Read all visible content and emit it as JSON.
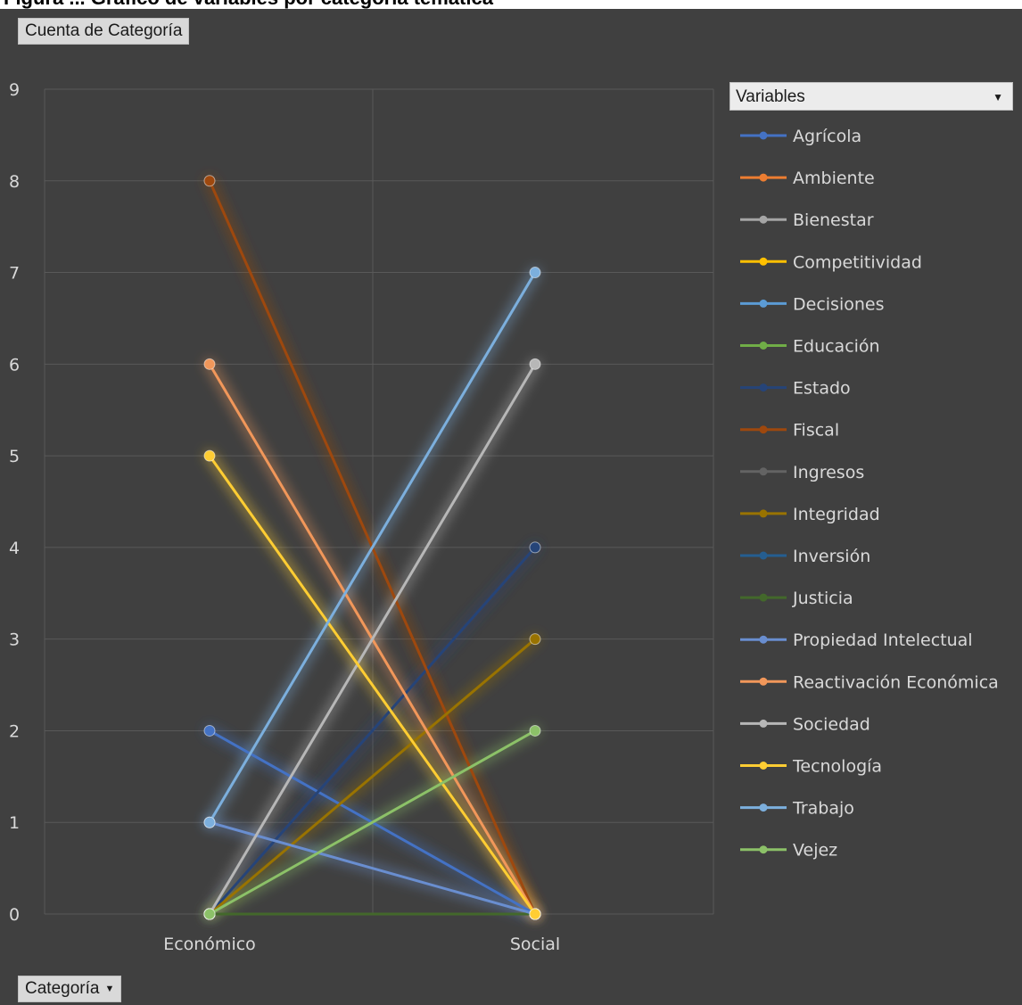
{
  "caption": "Figura ... Gráfico de variables por categoría temática",
  "buttons": {
    "value_field": "Cuenta de Categoría",
    "axis_field": "Categoría",
    "legend_field": "Variables"
  },
  "chart_data": {
    "type": "line",
    "categories": [
      "Económico",
      "Social"
    ],
    "ylim": [
      0,
      9
    ],
    "yticks": [
      0,
      1,
      2,
      3,
      4,
      5,
      6,
      7,
      8,
      9
    ],
    "grid": true,
    "legend_position": "right",
    "series": [
      {
        "name": "Agrícola",
        "values": [
          2,
          0
        ],
        "color": "#4472c4"
      },
      {
        "name": "Ambiente",
        "values": [
          0,
          0
        ],
        "color": "#ed7d31"
      },
      {
        "name": "Bienestar",
        "values": [
          0,
          0
        ],
        "color": "#a5a5a5"
      },
      {
        "name": "Competitividad",
        "values": [
          0,
          0
        ],
        "color": "#ffc000"
      },
      {
        "name": "Decisiones",
        "values": [
          0,
          0
        ],
        "color": "#5b9bd5"
      },
      {
        "name": "Educación",
        "values": [
          0,
          0
        ],
        "color": "#70ad47"
      },
      {
        "name": "Estado",
        "values": [
          0,
          4
        ],
        "color": "#264478"
      },
      {
        "name": "Fiscal",
        "values": [
          8,
          0
        ],
        "color": "#9e480e"
      },
      {
        "name": "Ingresos",
        "values": [
          0,
          0
        ],
        "color": "#636363"
      },
      {
        "name": "Integridad",
        "values": [
          0,
          3
        ],
        "color": "#997300"
      },
      {
        "name": "Inversión",
        "values": [
          0,
          0
        ],
        "color": "#255e91"
      },
      {
        "name": "Justicia",
        "values": [
          0,
          0
        ],
        "color": "#43682b"
      },
      {
        "name": "Propiedad Intelectual",
        "values": [
          1,
          0
        ],
        "color": "#698ed0"
      },
      {
        "name": "Reactivación Económica",
        "values": [
          6,
          0
        ],
        "color": "#f1975a"
      },
      {
        "name": "Sociedad",
        "values": [
          0,
          6
        ],
        "color": "#b7b7b7"
      },
      {
        "name": "Tecnología",
        "values": [
          5,
          0
        ],
        "color": "#ffcd33"
      },
      {
        "name": "Trabajo",
        "values": [
          1,
          7
        ],
        "color": "#7cafdd"
      },
      {
        "name": "Vejez",
        "values": [
          0,
          2
        ],
        "color": "#8cc168"
      }
    ]
  }
}
